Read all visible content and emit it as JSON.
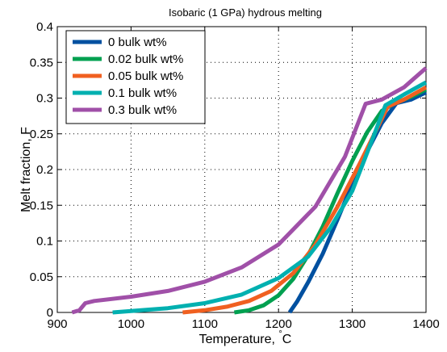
{
  "chart_data": {
    "type": "line",
    "title": "Isobaric (1 GPa) hydrous melting",
    "xlabel_main": "Temperature, ",
    "xlabel_unit_sup": "°",
    "xlabel_unit": "C",
    "ylabel": "Melt fraction, F",
    "xlim": [
      900,
      1400
    ],
    "ylim": [
      0,
      0.4
    ],
    "x_ticks": [
      "900",
      "1000",
      "1100",
      "1200",
      "1300",
      "1400"
    ],
    "x_tick_values": [
      900,
      1000,
      1100,
      1200,
      1300,
      1400
    ],
    "y_ticks": [
      "0",
      "0.05",
      "0.1",
      "0.15",
      "0.2",
      "0.25",
      "0.3",
      "0.35",
      "0.4"
    ],
    "y_tick_values": [
      0,
      0.05,
      0.1,
      0.15,
      0.2,
      0.25,
      0.3,
      0.35,
      0.4
    ],
    "grid": true,
    "legend_position": "top-left",
    "series": [
      {
        "name": "0 bulk wt%",
        "color": "#0050a0",
        "points": [
          [
            1215,
            0
          ],
          [
            1225,
            0.015
          ],
          [
            1240,
            0.042
          ],
          [
            1260,
            0.082
          ],
          [
            1280,
            0.13
          ],
          [
            1300,
            0.18
          ],
          [
            1320,
            0.225
          ],
          [
            1340,
            0.265
          ],
          [
            1360,
            0.293
          ],
          [
            1380,
            0.298
          ],
          [
            1400,
            0.308
          ]
        ]
      },
      {
        "name": "0.02 bulk wt%",
        "color": "#00a050",
        "points": [
          [
            1140,
            0
          ],
          [
            1160,
            0.003
          ],
          [
            1180,
            0.01
          ],
          [
            1200,
            0.024
          ],
          [
            1220,
            0.047
          ],
          [
            1240,
            0.08
          ],
          [
            1260,
            0.12
          ],
          [
            1280,
            0.167
          ],
          [
            1300,
            0.212
          ],
          [
            1320,
            0.252
          ],
          [
            1340,
            0.282
          ],
          [
            1356,
            0.292
          ],
          [
            1380,
            0.302
          ],
          [
            1400,
            0.312
          ]
        ]
      },
      {
        "name": "0.05 bulk wt%",
        "color": "#f06020",
        "points": [
          [
            1070,
            0
          ],
          [
            1100,
            0.003
          ],
          [
            1130,
            0.008
          ],
          [
            1160,
            0.016
          ],
          [
            1190,
            0.03
          ],
          [
            1220,
            0.055
          ],
          [
            1250,
            0.095
          ],
          [
            1280,
            0.148
          ],
          [
            1310,
            0.208
          ],
          [
            1330,
            0.25
          ],
          [
            1348,
            0.288
          ],
          [
            1370,
            0.298
          ],
          [
            1400,
            0.315
          ]
        ]
      },
      {
        "name": "0.1 bulk wt%",
        "color": "#00b0b0",
        "points": [
          [
            975,
            0
          ],
          [
            1000,
            0.002
          ],
          [
            1050,
            0.006
          ],
          [
            1100,
            0.013
          ],
          [
            1150,
            0.025
          ],
          [
            1200,
            0.048
          ],
          [
            1240,
            0.078
          ],
          [
            1270,
            0.118
          ],
          [
            1300,
            0.17
          ],
          [
            1320,
            0.223
          ],
          [
            1345,
            0.29
          ],
          [
            1370,
            0.305
          ],
          [
            1400,
            0.322
          ]
        ]
      },
      {
        "name": "0.3 bulk wt%",
        "color": "#a050a8",
        "points": [
          [
            920,
            0
          ],
          [
            930,
            0.003
          ],
          [
            938,
            0.013
          ],
          [
            950,
            0.016
          ],
          [
            1000,
            0.022
          ],
          [
            1050,
            0.03
          ],
          [
            1100,
            0.043
          ],
          [
            1150,
            0.063
          ],
          [
            1200,
            0.095
          ],
          [
            1250,
            0.148
          ],
          [
            1290,
            0.218
          ],
          [
            1318,
            0.292
          ],
          [
            1340,
            0.298
          ],
          [
            1370,
            0.315
          ],
          [
            1400,
            0.342
          ]
        ]
      }
    ]
  }
}
